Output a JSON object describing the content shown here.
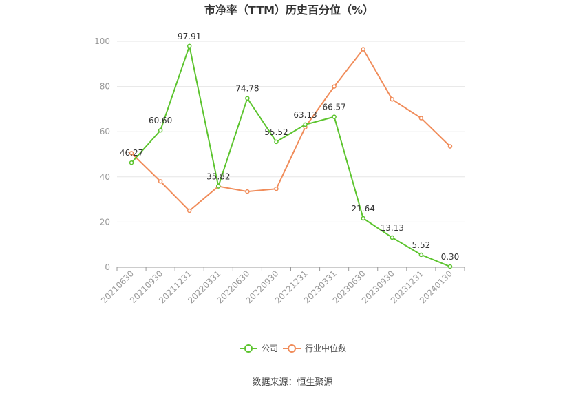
{
  "chart_data": {
    "type": "line",
    "title": "市净率（TTM）历史百分位（%）",
    "categories": [
      "20210630",
      "20210930",
      "20211231",
      "20220331",
      "20220630",
      "20220930",
      "20221231",
      "20230331",
      "20230630",
      "20230930",
      "20231231",
      "20240130"
    ],
    "series": [
      {
        "name": "公司",
        "color": "#5cc42e",
        "values": [
          46.27,
          60.6,
          97.91,
          35.82,
          74.78,
          55.52,
          63.13,
          66.57,
          21.64,
          13.13,
          5.52,
          0.3
        ],
        "labels": [
          "46.27",
          "60.60",
          "97.91",
          "35.82",
          "74.78",
          "55.52",
          "63.13",
          "66.57",
          "21.64",
          "13.13",
          "5.52",
          "0.30"
        ]
      },
      {
        "name": "行业中位数",
        "color": "#f08c5a",
        "values": [
          50.5,
          38.0,
          25.0,
          35.8,
          33.5,
          34.7,
          62.0,
          80.0,
          96.5,
          74.3,
          66.0,
          53.5
        ]
      }
    ],
    "ylim": [
      0,
      100
    ],
    "yticks": [
      0,
      20,
      40,
      60,
      80,
      100
    ],
    "grid": true,
    "legend": "bottom-center"
  },
  "source": "数据来源：恒生聚源"
}
